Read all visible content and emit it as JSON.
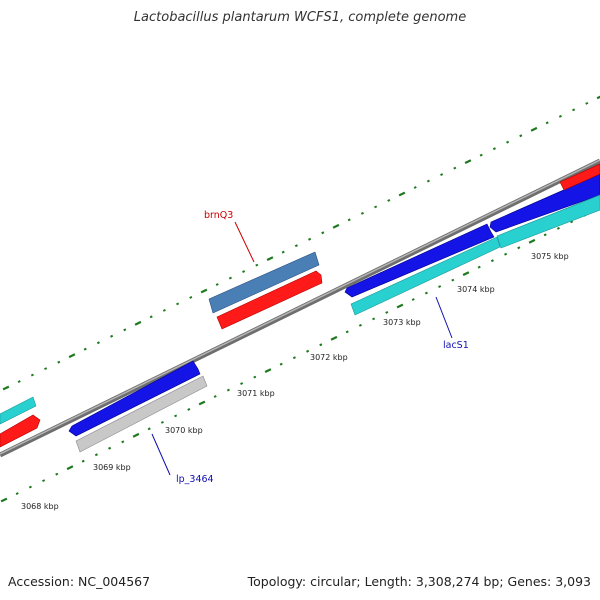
{
  "title": "Lactobacillus plantarum WCFS1, complete genome",
  "footer": {
    "accession": "Accession: NC_004567",
    "summary": "Topology: circular; Length: 3,308,274 bp; Genes: 3,093"
  },
  "colors": {
    "backbone": "#8c8c8c",
    "tick": "#1f7a1f",
    "cds_blue": "#1414e6",
    "cds_red": "#ff1a1a",
    "cds_cyan": "#29d0d0",
    "cds_steel": "#4a7fb5",
    "cds_gray": "#c8c8c8",
    "label_red": "#cc0000",
    "label_blue": "#1010b0"
  },
  "scale_labels": [
    "3068 kbp",
    "3069 kbp",
    "3070 kbp",
    "3071 kbp",
    "3072 kbp",
    "3073 kbp",
    "3074 kbp",
    "3075 kbp"
  ],
  "gene_labels": [
    {
      "id": "brnq3",
      "text": "brnQ3",
      "color": "label_red"
    },
    {
      "id": "lacs1",
      "text": "lacS1",
      "color": "label_blue"
    },
    {
      "id": "lp3464",
      "text": "lp_3464",
      "color": "label_blue"
    }
  ]
}
